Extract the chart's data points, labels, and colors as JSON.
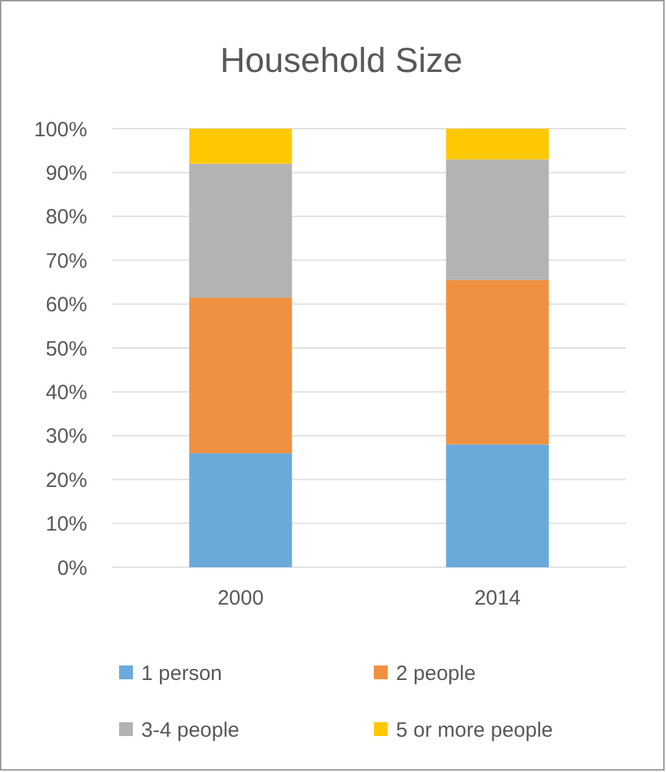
{
  "chart_data": {
    "type": "bar",
    "title": "Household Size",
    "categories": [
      "2000",
      "2014"
    ],
    "stacked": true,
    "series": [
      {
        "name": "1 person",
        "color": "#6aaadb",
        "values": [
          26,
          28
        ]
      },
      {
        "name": "2 people",
        "color": "#f09142",
        "values": [
          35.5,
          37.5
        ]
      },
      {
        "name": "3-4 people",
        "color": "#b3b3b3",
        "values": [
          30.5,
          27.5
        ]
      },
      {
        "name": "5 or more people",
        "color": "#ffc800",
        "values": [
          8,
          7
        ]
      }
    ],
    "ylim": [
      0,
      100
    ],
    "yticks": [
      {
        "value": 0,
        "label": "0%"
      },
      {
        "value": 10,
        "label": "10%"
      },
      {
        "value": 20,
        "label": "20%"
      },
      {
        "value": 30,
        "label": "30%"
      },
      {
        "value": 40,
        "label": "40%"
      },
      {
        "value": 50,
        "label": "50%"
      },
      {
        "value": 60,
        "label": "60%"
      },
      {
        "value": 70,
        "label": "70%"
      },
      {
        "value": 80,
        "label": "80%"
      },
      {
        "value": 90,
        "label": "90%"
      },
      {
        "value": 100,
        "label": "100%"
      }
    ],
    "grid": "y",
    "legend": "bottom"
  }
}
